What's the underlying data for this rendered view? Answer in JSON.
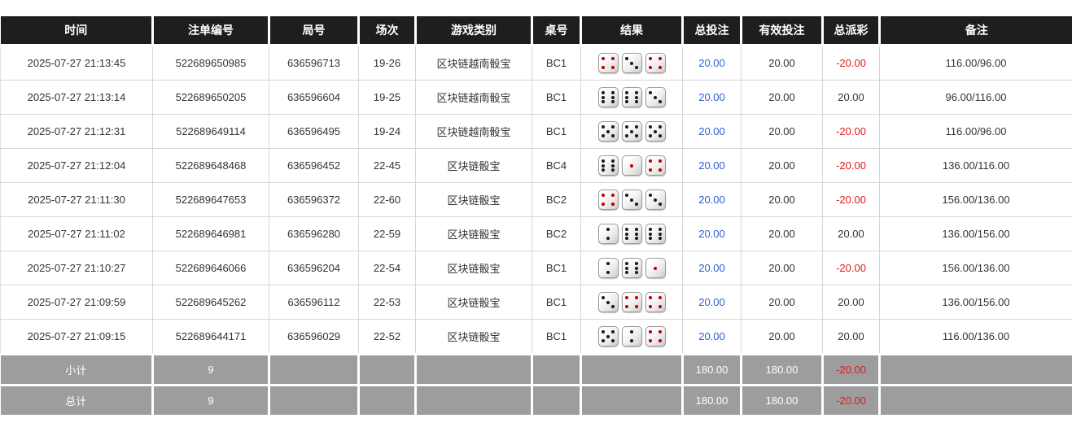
{
  "table": {
    "columns": [
      {
        "key": "time",
        "label": "时间"
      },
      {
        "key": "bet_id",
        "label": "注单编号"
      },
      {
        "key": "round_id",
        "label": "局号"
      },
      {
        "key": "session",
        "label": "场次"
      },
      {
        "key": "game_type",
        "label": "游戏类别"
      },
      {
        "key": "table_no",
        "label": "桌号"
      },
      {
        "key": "result",
        "label": "结果"
      },
      {
        "key": "total_bet",
        "label": "总投注"
      },
      {
        "key": "valid_bet",
        "label": "有效投注"
      },
      {
        "key": "total_payout",
        "label": "总派彩"
      },
      {
        "key": "remark",
        "label": "备注"
      }
    ],
    "rows": [
      {
        "time": "2025-07-27 21:13:45",
        "bet_id": "522689650985",
        "round_id": "636596713",
        "session": "19-26",
        "game_type": "区块链越南骰宝",
        "table_no": "BC1",
        "dice": [
          4,
          3,
          4
        ],
        "total_bet": "20.00",
        "valid_bet": "20.00",
        "total_payout": "-20.00",
        "remark": "116.00/96.00"
      },
      {
        "time": "2025-07-27 21:13:14",
        "bet_id": "522689650205",
        "round_id": "636596604",
        "session": "19-25",
        "game_type": "区块链越南骰宝",
        "table_no": "BC1",
        "dice": [
          6,
          6,
          3
        ],
        "total_bet": "20.00",
        "valid_bet": "20.00",
        "total_payout": "20.00",
        "remark": "96.00/116.00"
      },
      {
        "time": "2025-07-27 21:12:31",
        "bet_id": "522689649114",
        "round_id": "636596495",
        "session": "19-24",
        "game_type": "区块链越南骰宝",
        "table_no": "BC1",
        "dice": [
          5,
          5,
          5
        ],
        "total_bet": "20.00",
        "valid_bet": "20.00",
        "total_payout": "-20.00",
        "remark": "116.00/96.00"
      },
      {
        "time": "2025-07-27 21:12:04",
        "bet_id": "522689648468",
        "round_id": "636596452",
        "session": "22-45",
        "game_type": "区块链骰宝",
        "table_no": "BC4",
        "dice": [
          6,
          1,
          4
        ],
        "total_bet": "20.00",
        "valid_bet": "20.00",
        "total_payout": "-20.00",
        "remark": "136.00/116.00"
      },
      {
        "time": "2025-07-27 21:11:30",
        "bet_id": "522689647653",
        "round_id": "636596372",
        "session": "22-60",
        "game_type": "区块链骰宝",
        "table_no": "BC2",
        "dice": [
          4,
          3,
          3
        ],
        "total_bet": "20.00",
        "valid_bet": "20.00",
        "total_payout": "-20.00",
        "remark": "156.00/136.00"
      },
      {
        "time": "2025-07-27 21:11:02",
        "bet_id": "522689646981",
        "round_id": "636596280",
        "session": "22-59",
        "game_type": "区块链骰宝",
        "table_no": "BC2",
        "dice": [
          2,
          6,
          6
        ],
        "total_bet": "20.00",
        "valid_bet": "20.00",
        "total_payout": "20.00",
        "remark": "136.00/156.00"
      },
      {
        "time": "2025-07-27 21:10:27",
        "bet_id": "522689646066",
        "round_id": "636596204",
        "session": "22-54",
        "game_type": "区块链骰宝",
        "table_no": "BC1",
        "dice": [
          2,
          6,
          1
        ],
        "total_bet": "20.00",
        "valid_bet": "20.00",
        "total_payout": "-20.00",
        "remark": "156.00/136.00"
      },
      {
        "time": "2025-07-27 21:09:59",
        "bet_id": "522689645262",
        "round_id": "636596112",
        "session": "22-53",
        "game_type": "区块链骰宝",
        "table_no": "BC1",
        "dice": [
          3,
          4,
          4
        ],
        "total_bet": "20.00",
        "valid_bet": "20.00",
        "total_payout": "20.00",
        "remark": "136.00/156.00"
      },
      {
        "time": "2025-07-27 21:09:15",
        "bet_id": "522689644171",
        "round_id": "636596029",
        "session": "22-52",
        "game_type": "区块链骰宝",
        "table_no": "BC1",
        "dice": [
          5,
          2,
          4
        ],
        "total_bet": "20.00",
        "valid_bet": "20.00",
        "total_payout": "20.00",
        "remark": "116.00/136.00"
      }
    ],
    "footer_rows": [
      {
        "label": "小计",
        "count": "9",
        "total_bet": "180.00",
        "valid_bet": "180.00",
        "total_payout": "-20.00"
      },
      {
        "label": "总计",
        "count": "9",
        "total_bet": "180.00",
        "valid_bet": "180.00",
        "total_payout": "-20.00"
      }
    ]
  },
  "colors": {
    "header_bg": "#1e1e1e",
    "footer_bg": "#9d9d9d",
    "bet_amount_blue": "#2a5fd0",
    "negative_red": "#e01b1b",
    "dice_red_pip": "#bb0000",
    "dice_black_pip": "#1a1a1a"
  }
}
